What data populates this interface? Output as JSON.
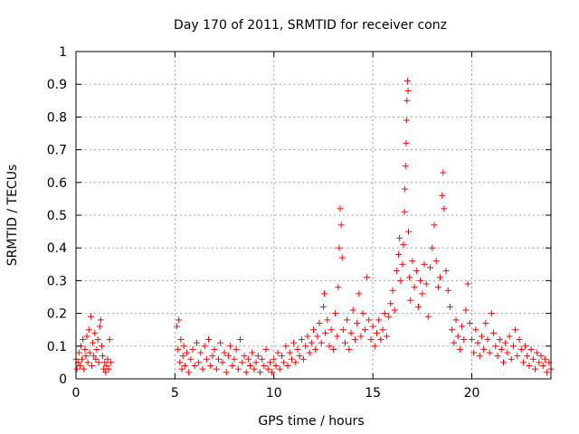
{
  "chart_data": {
    "type": "scatter",
    "title": "Day 170 of 2011, SRMTID for receiver conz",
    "xlabel": "GPS time / hours",
    "ylabel": "SRMTID / TECUs",
    "xlim": [
      0,
      24
    ],
    "ylim": [
      0,
      1
    ],
    "x_ticks": [
      0,
      5,
      10,
      15,
      20
    ],
    "x_tick_labels": [
      "0",
      "5",
      "10",
      "15",
      "20"
    ],
    "y_ticks": [
      0,
      0.1,
      0.2,
      0.3,
      0.4,
      0.5,
      0.6,
      0.7,
      0.8,
      0.9,
      1
    ],
    "y_tick_labels": [
      "0",
      "0.1",
      "0.2",
      "0.3",
      "0.4",
      "0.5",
      "0.6",
      "0.7",
      "0.8",
      "0.9",
      "1"
    ],
    "grid": true,
    "marker": "+",
    "marker_color": "#ff0000",
    "series": [
      {
        "name": "SRMTID",
        "points": [
          [
            0.0,
            0.06
          ],
          [
            0.05,
            0.03
          ],
          [
            0.1,
            0.05
          ],
          [
            0.15,
            0.08
          ],
          [
            0.2,
            0.04
          ],
          [
            0.25,
            0.1
          ],
          [
            0.3,
            0.06
          ],
          [
            0.35,
            0.12
          ],
          [
            0.4,
            0.03
          ],
          [
            0.45,
            0.09
          ],
          [
            0.5,
            0.07
          ],
          [
            0.55,
            0.13
          ],
          [
            0.6,
            0.05
          ],
          [
            0.65,
            0.15
          ],
          [
            0.7,
            0.08
          ],
          [
            0.75,
            0.19
          ],
          [
            0.8,
            0.04
          ],
          [
            0.85,
            0.11
          ],
          [
            0.9,
            0.07
          ],
          [
            0.95,
            0.14
          ],
          [
            1.0,
            0.06
          ],
          [
            1.05,
            0.09
          ],
          [
            1.1,
            0.12
          ],
          [
            1.15,
            0.05
          ],
          [
            1.2,
            0.16
          ],
          [
            1.25,
            0.18
          ],
          [
            1.3,
            0.1
          ],
          [
            1.35,
            0.07
          ],
          [
            1.4,
            0.03
          ],
          [
            1.45,
            0.05
          ],
          [
            1.5,
            0.02
          ],
          [
            1.55,
            0.04
          ],
          [
            1.6,
            0.06
          ],
          [
            1.65,
            0.03
          ],
          [
            1.7,
            0.12
          ],
          [
            1.75,
            0.05
          ],
          [
            5.1,
            0.16
          ],
          [
            5.15,
            0.09
          ],
          [
            5.2,
            0.18
          ],
          [
            5.25,
            0.05
          ],
          [
            5.3,
            0.12
          ],
          [
            5.35,
            0.03
          ],
          [
            5.4,
            0.07
          ],
          [
            5.45,
            0.1
          ],
          [
            5.5,
            0.04
          ],
          [
            5.6,
            0.08
          ],
          [
            5.7,
            0.02
          ],
          [
            5.8,
            0.06
          ],
          [
            5.9,
            0.09
          ],
          [
            6.0,
            0.04
          ],
          [
            6.1,
            0.11
          ],
          [
            6.2,
            0.05
          ],
          [
            6.3,
            0.08
          ],
          [
            6.4,
            0.03
          ],
          [
            6.5,
            0.1
          ],
          [
            6.6,
            0.06
          ],
          [
            6.7,
            0.12
          ],
          [
            6.8,
            0.04
          ],
          [
            6.9,
            0.07
          ],
          [
            7.0,
            0.09
          ],
          [
            7.1,
            0.03
          ],
          [
            7.2,
            0.06
          ],
          [
            7.3,
            0.11
          ],
          [
            7.4,
            0.05
          ],
          [
            7.5,
            0.08
          ],
          [
            7.6,
            0.02
          ],
          [
            7.7,
            0.07
          ],
          [
            7.8,
            0.1
          ],
          [
            7.9,
            0.04
          ],
          [
            8.0,
            0.06
          ],
          [
            8.1,
            0.09
          ],
          [
            8.2,
            0.03
          ],
          [
            8.3,
            0.12
          ],
          [
            8.4,
            0.05
          ],
          [
            8.5,
            0.07
          ],
          [
            8.6,
            0.02
          ],
          [
            8.7,
            0.06
          ],
          [
            8.8,
            0.04
          ],
          [
            8.9,
            0.08
          ],
          [
            9.0,
            0.03
          ],
          [
            9.1,
            0.05
          ],
          [
            9.2,
            0.07
          ],
          [
            9.3,
            0.02
          ],
          [
            9.4,
            0.06
          ],
          [
            9.5,
            0.04
          ],
          [
            9.6,
            0.09
          ],
          [
            9.7,
            0.03
          ],
          [
            9.8,
            0.05
          ],
          [
            9.9,
            0.02
          ],
          [
            10.0,
            0.06
          ],
          [
            10.1,
            0.04
          ],
          [
            10.2,
            0.08
          ],
          [
            10.3,
            0.03
          ],
          [
            10.4,
            0.07
          ],
          [
            10.5,
            0.05
          ],
          [
            10.6,
            0.1
          ],
          [
            10.7,
            0.04
          ],
          [
            10.8,
            0.08
          ],
          [
            10.9,
            0.06
          ],
          [
            11.0,
            0.11
          ],
          [
            11.1,
            0.05
          ],
          [
            11.2,
            0.09
          ],
          [
            11.3,
            0.07
          ],
          [
            11.4,
            0.12
          ],
          [
            11.5,
            0.06
          ],
          [
            11.6,
            0.1
          ],
          [
            11.7,
            0.13
          ],
          [
            11.8,
            0.08
          ],
          [
            11.9,
            0.11
          ],
          [
            12.0,
            0.15
          ],
          [
            12.1,
            0.09
          ],
          [
            12.2,
            0.13
          ],
          [
            12.3,
            0.17
          ],
          [
            12.4,
            0.11
          ],
          [
            12.5,
            0.22
          ],
          [
            12.55,
            0.26
          ],
          [
            12.6,
            0.14
          ],
          [
            12.7,
            0.18
          ],
          [
            12.8,
            0.1
          ],
          [
            12.9,
            0.15
          ],
          [
            13.0,
            0.09
          ],
          [
            13.1,
            0.2
          ],
          [
            13.2,
            0.13
          ],
          [
            13.25,
            0.28
          ],
          [
            13.3,
            0.4
          ],
          [
            13.35,
            0.52
          ],
          [
            13.4,
            0.47
          ],
          [
            13.45,
            0.37
          ],
          [
            13.5,
            0.15
          ],
          [
            13.6,
            0.11
          ],
          [
            13.7,
            0.18
          ],
          [
            13.8,
            0.09
          ],
          [
            13.9,
            0.14
          ],
          [
            14.0,
            0.21
          ],
          [
            14.1,
            0.12
          ],
          [
            14.2,
            0.17
          ],
          [
            14.3,
            0.26
          ],
          [
            14.4,
            0.13
          ],
          [
            14.5,
            0.2
          ],
          [
            14.6,
            0.15
          ],
          [
            14.7,
            0.31
          ],
          [
            14.8,
            0.18
          ],
          [
            14.9,
            0.12
          ],
          [
            15.0,
            0.16
          ],
          [
            15.1,
            0.1
          ],
          [
            15.2,
            0.14
          ],
          [
            15.3,
            0.18
          ],
          [
            15.4,
            0.12
          ],
          [
            15.5,
            0.15
          ],
          [
            15.6,
            0.2
          ],
          [
            15.7,
            0.13
          ],
          [
            15.8,
            0.19
          ],
          [
            15.9,
            0.23
          ],
          [
            16.0,
            0.27
          ],
          [
            16.1,
            0.21
          ],
          [
            16.2,
            0.33
          ],
          [
            16.3,
            0.38
          ],
          [
            16.35,
            0.43
          ],
          [
            16.4,
            0.3
          ],
          [
            16.5,
            0.35
          ],
          [
            16.55,
            0.41
          ],
          [
            16.6,
            0.51
          ],
          [
            16.62,
            0.58
          ],
          [
            16.65,
            0.65
          ],
          [
            16.68,
            0.72
          ],
          [
            16.7,
            0.79
          ],
          [
            16.72,
            0.85
          ],
          [
            16.75,
            0.91
          ],
          [
            16.78,
            0.88
          ],
          [
            16.8,
            0.45
          ],
          [
            16.85,
            0.31
          ],
          [
            16.9,
            0.24
          ],
          [
            17.0,
            0.36
          ],
          [
            17.1,
            0.28
          ],
          [
            17.2,
            0.33
          ],
          [
            17.3,
            0.22
          ],
          [
            17.4,
            0.3
          ],
          [
            17.5,
            0.26
          ],
          [
            17.6,
            0.35
          ],
          [
            17.7,
            0.29
          ],
          [
            17.8,
            0.19
          ],
          [
            17.9,
            0.34
          ],
          [
            18.0,
            0.4
          ],
          [
            18.1,
            0.47
          ],
          [
            18.2,
            0.36
          ],
          [
            18.3,
            0.28
          ],
          [
            18.4,
            0.31
          ],
          [
            18.5,
            0.56
          ],
          [
            18.55,
            0.63
          ],
          [
            18.6,
            0.52
          ],
          [
            18.7,
            0.33
          ],
          [
            18.8,
            0.27
          ],
          [
            18.9,
            0.22
          ],
          [
            19.0,
            0.15
          ],
          [
            19.1,
            0.11
          ],
          [
            19.2,
            0.18
          ],
          [
            19.3,
            0.13
          ],
          [
            19.4,
            0.09
          ],
          [
            19.5,
            0.16
          ],
          [
            19.6,
            0.12
          ],
          [
            19.7,
            0.21
          ],
          [
            19.8,
            0.29
          ],
          [
            19.9,
            0.17
          ],
          [
            20.0,
            0.12
          ],
          [
            20.1,
            0.08
          ],
          [
            20.2,
            0.15
          ],
          [
            20.3,
            0.11
          ],
          [
            20.4,
            0.07
          ],
          [
            20.5,
            0.13
          ],
          [
            20.6,
            0.09
          ],
          [
            20.7,
            0.17
          ],
          [
            20.8,
            0.12
          ],
          [
            20.9,
            0.08
          ],
          [
            21.0,
            0.2
          ],
          [
            21.1,
            0.14
          ],
          [
            21.2,
            0.1
          ],
          [
            21.3,
            0.07
          ],
          [
            21.4,
            0.12
          ],
          [
            21.5,
            0.09
          ],
          [
            21.6,
            0.05
          ],
          [
            21.7,
            0.11
          ],
          [
            21.8,
            0.08
          ],
          [
            21.9,
            0.13
          ],
          [
            22.0,
            0.06
          ],
          [
            22.1,
            0.1
          ],
          [
            22.2,
            0.15
          ],
          [
            22.3,
            0.07
          ],
          [
            22.4,
            0.12
          ],
          [
            22.5,
            0.09
          ],
          [
            22.6,
            0.05
          ],
          [
            22.7,
            0.1
          ],
          [
            22.8,
            0.07
          ],
          [
            22.9,
            0.04
          ],
          [
            23.0,
            0.09
          ],
          [
            23.1,
            0.06
          ],
          [
            23.2,
            0.03
          ],
          [
            23.3,
            0.08
          ],
          [
            23.4,
            0.05
          ],
          [
            23.5,
            0.07
          ],
          [
            23.6,
            0.04
          ],
          [
            23.7,
            0.06
          ],
          [
            23.8,
            0.02
          ],
          [
            23.9,
            0.05
          ],
          [
            24.0,
            0.03
          ]
        ]
      }
    ]
  }
}
